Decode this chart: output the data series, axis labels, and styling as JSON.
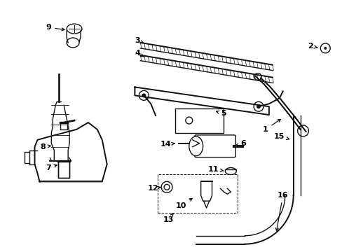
{
  "bg_color": "#ffffff",
  "line_color": "#111111",
  "label_color": "#000000",
  "figsize": [
    4.89,
    3.6
  ],
  "dpi": 100,
  "xlim": [
    0,
    489
  ],
  "ylim": [
    0,
    360
  ]
}
